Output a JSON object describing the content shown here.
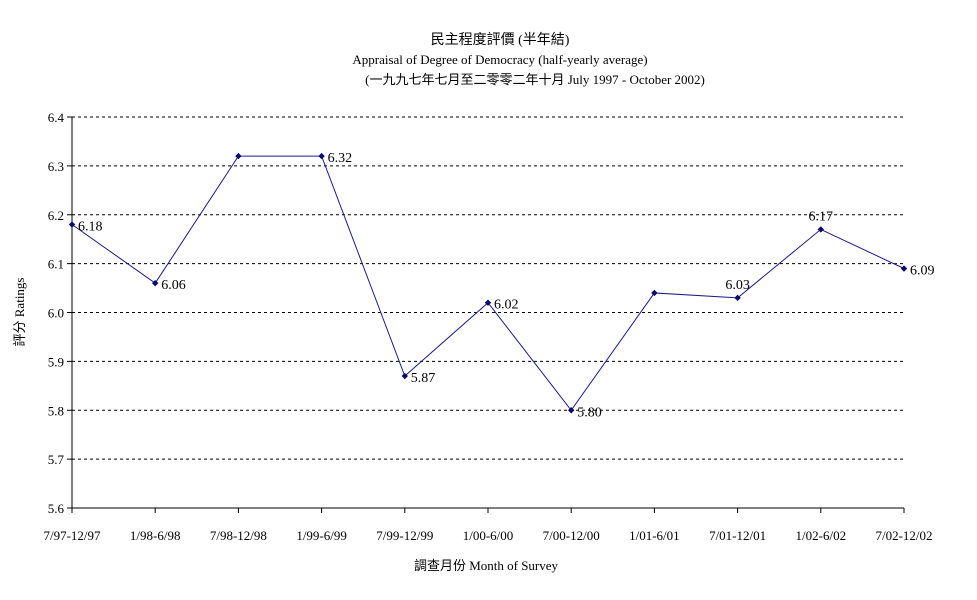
{
  "chart_data": {
    "type": "line",
    "title": "民主程度評價 (半年結)",
    "subtitle": "Appraisal of Degree of Democracy (half-yearly average)",
    "subtitle2": "(一九九七年七月至二零零二年十月 July 1997 - October 2002)",
    "xlabel": "調查月份 Month of Survey",
    "ylabel": "評分 Ratings",
    "ylim": [
      5.6,
      6.4
    ],
    "yticks": [
      "5.6",
      "5.7",
      "5.8",
      "5.9",
      "6.0",
      "6.1",
      "6.2",
      "6.3",
      "6.4"
    ],
    "grid": true,
    "categories": [
      "7/97-12/97",
      "1/98-6/98",
      "7/98-12/98",
      "1/99-6/99",
      "7/99-12/99",
      "1/00-6/00",
      "7/00-12/00",
      "1/01-6/01",
      "7/01-12/01",
      "1/02-6/02",
      "7/02-12/02"
    ],
    "values": [
      6.18,
      6.06,
      6.32,
      6.32,
      5.87,
      6.02,
      5.8,
      6.04,
      6.03,
      6.17,
      6.09
    ],
    "data_labels": [
      "6.18",
      "6.06",
      "",
      "6.32",
      "5.87",
      "6.02",
      "5.80",
      "",
      "6.03",
      "6.17",
      "6.09"
    ],
    "line_color": "#1a1a8c",
    "marker_color": "#0a0a6e"
  }
}
